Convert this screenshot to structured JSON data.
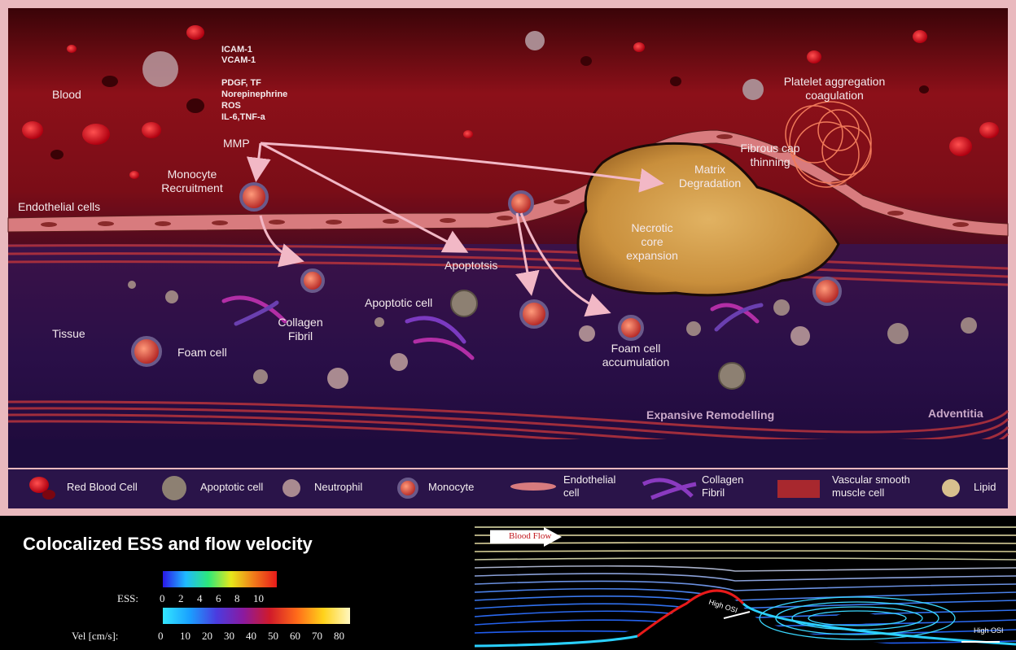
{
  "labels": {
    "blood": "Blood",
    "molecules": [
      "ICAM-1",
      "VCAM-1",
      "PDGF, TF",
      "Norepinephrine",
      "ROS",
      "IL-6,TNF-a"
    ],
    "mmp": "MMP",
    "monocyte_recruitment": [
      "Monocyte",
      "Recruitment"
    ],
    "endothelial_cells": "Endothelial cells",
    "apoptosis": "Apoptotsis",
    "apoptotic_cell": "Apoptotic cell",
    "collagen_fibril": [
      "Collagen",
      "Fibril"
    ],
    "tissue": "Tissue",
    "foam_cell": "Foam cell",
    "foam_cell_accumulation": [
      "Foam cell",
      "accumulation"
    ],
    "necrotic_core": [
      "Necrotic",
      "core",
      "expansion"
    ],
    "matrix_degradation": [
      "Matrix",
      "Degradation"
    ],
    "fibrous_cap": [
      "Fibrous cap",
      "thinning"
    ],
    "platelet": [
      "Platelet aggregation",
      "coagulation"
    ],
    "expansive_remodelling": "Expansive Remodelling",
    "adventitia": "Adventitia"
  },
  "legend": [
    {
      "label": "Red Blood Cell",
      "icon": "red-blood-cell-icon"
    },
    {
      "label": "Apoptotic cell",
      "icon": "apoptotic-cell-icon"
    },
    {
      "label": "Neutrophil",
      "icon": "neutrophil-icon"
    },
    {
      "label": "Monocyte",
      "icon": "monocyte-icon"
    },
    {
      "label": "Endothelial cell",
      "icon": "endothelial-cell-icon"
    },
    {
      "label": "Collagen Fibril",
      "icon": "collagen-fibril-icon"
    },
    {
      "label": "Vascular smooth muscle cell",
      "icon": "smooth-muscle-cell-icon"
    },
    {
      "label": "Lipid",
      "icon": "lipid-icon"
    }
  ],
  "panel": {
    "title": "Colocalized ESS and flow velocity",
    "ess_label": "ESS:",
    "ess_ticks": [
      "0",
      "2",
      "4",
      "6",
      "8",
      "10"
    ],
    "vel_label": "Vel [cm/s]:",
    "vel_ticks": [
      "0",
      "10",
      "20",
      "30",
      "40",
      "50",
      "60",
      "70",
      "80"
    ],
    "blood_flow": "Blood Flow",
    "high_osi_1": "High OSI",
    "high_osi_2": "High OSI"
  },
  "colors": {
    "blood_bg": "#8a0f1a",
    "tissue_bg": "#2b0f4a",
    "plaque": "#d29a45",
    "frame": "#e9b9be",
    "arrow": "#f2b8c6"
  }
}
